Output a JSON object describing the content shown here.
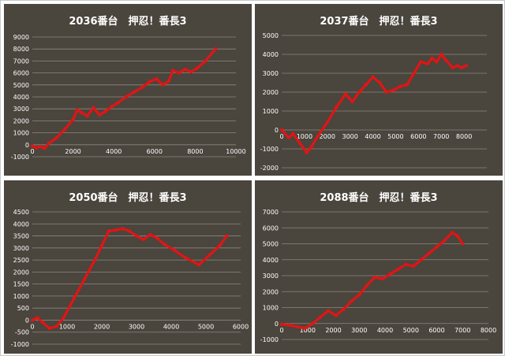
{
  "chart_data": [
    {
      "type": "line",
      "title": "2036番台　押忍！番長3",
      "color": "#e01515",
      "xlim": [
        0,
        10000
      ],
      "ylim": [
        -1000,
        9000
      ],
      "x_ticks": [
        0,
        2000,
        4000,
        6000,
        8000,
        10000
      ],
      "y_ticks": [
        -1000,
        0,
        1000,
        2000,
        3000,
        4000,
        5000,
        6000,
        7000,
        8000,
        9000
      ],
      "grid": true,
      "x": [
        0,
        200,
        400,
        600,
        800,
        1200,
        1600,
        2000,
        2200,
        2400,
        2700,
        3000,
        3300,
        3600,
        3900,
        4200,
        4600,
        5000,
        5400,
        5800,
        6100,
        6400,
        6700,
        6900,
        7200,
        7500,
        7800,
        8100,
        8500,
        9000
      ],
      "y": [
        -100,
        -250,
        -150,
        -300,
        100,
        600,
        1300,
        2100,
        2900,
        2700,
        2400,
        3100,
        2500,
        2800,
        3200,
        3500,
        4000,
        4400,
        4800,
        5300,
        5500,
        5000,
        5300,
        6200,
        6000,
        6300,
        6100,
        6400,
        7000,
        8000
      ]
    },
    {
      "type": "line",
      "title": "2037番台　押忍！番長3",
      "color": "#e01515",
      "xlim": [
        0,
        9000
      ],
      "ylim": [
        -2000,
        5000
      ],
      "x_ticks": [
        0,
        1000,
        2000,
        3000,
        4000,
        5000,
        6000,
        7000,
        8000
      ],
      "y_ticks": [
        -2000,
        -1000,
        0,
        1000,
        2000,
        3000,
        4000,
        5000
      ],
      "grid": true,
      "x": [
        0,
        300,
        500,
        800,
        1100,
        1300,
        1600,
        2000,
        2400,
        2800,
        3100,
        3400,
        3700,
        4000,
        4300,
        4600,
        4900,
        5200,
        5500,
        5800,
        6100,
        6400,
        6600,
        6800,
        7000,
        7200,
        7500,
        7700,
        7900,
        8100
      ],
      "y": [
        0,
        -400,
        -200,
        -700,
        -1200,
        -900,
        -300,
        400,
        1200,
        1900,
        1500,
        2000,
        2400,
        2800,
        2500,
        2000,
        2100,
        2300,
        2400,
        3000,
        3600,
        3500,
        3800,
        3600,
        4000,
        3700,
        3300,
        3400,
        3300,
        3400
      ]
    },
    {
      "type": "line",
      "title": "2050番台　押忍！番長3",
      "color": "#e01515",
      "xlim": [
        0,
        6000
      ],
      "ylim": [
        -1000,
        4500
      ],
      "x_ticks": [
        0,
        1000,
        2000,
        3000,
        4000,
        5000,
        6000
      ],
      "y_ticks": [
        -1000,
        -500,
        0,
        500,
        1000,
        1500,
        2000,
        2500,
        3000,
        3500,
        4000,
        4500
      ],
      "grid": true,
      "x": [
        0,
        150,
        300,
        500,
        700,
        900,
        1200,
        1500,
        1800,
        2000,
        2200,
        2400,
        2600,
        2800,
        3000,
        3200,
        3400,
        3600,
        3800,
        4100,
        4400,
        4800,
        5100,
        5400,
        5600
      ],
      "y": [
        0,
        100,
        -100,
        -350,
        -250,
        100,
        900,
        1700,
        2500,
        3100,
        3700,
        3750,
        3800,
        3700,
        3500,
        3350,
        3550,
        3400,
        3150,
        2900,
        2600,
        2300,
        2700,
        3100,
        3500
      ]
    },
    {
      "type": "line",
      "title": "2088番台　押忍！番長3",
      "color": "#e01515",
      "xlim": [
        0,
        8000
      ],
      "ylim": [
        -1000,
        7000
      ],
      "x_ticks": [
        0,
        1000,
        2000,
        3000,
        4000,
        5000,
        6000,
        7000,
        8000
      ],
      "y_ticks": [
        -1000,
        0,
        1000,
        2000,
        3000,
        4000,
        5000,
        6000,
        7000
      ],
      "grid": true,
      "x": [
        0,
        300,
        600,
        900,
        1200,
        1500,
        1800,
        2100,
        2400,
        2700,
        3000,
        3300,
        3600,
        3900,
        4200,
        4500,
        4800,
        5100,
        5400,
        5700,
        6000,
        6300,
        6600,
        6800,
        7000
      ],
      "y": [
        -50,
        -100,
        -200,
        -300,
        0,
        400,
        800,
        500,
        900,
        1400,
        1800,
        2400,
        2900,
        2800,
        3100,
        3400,
        3700,
        3600,
        4000,
        4400,
        4800,
        5200,
        5700,
        5500,
        5000
      ]
    }
  ]
}
